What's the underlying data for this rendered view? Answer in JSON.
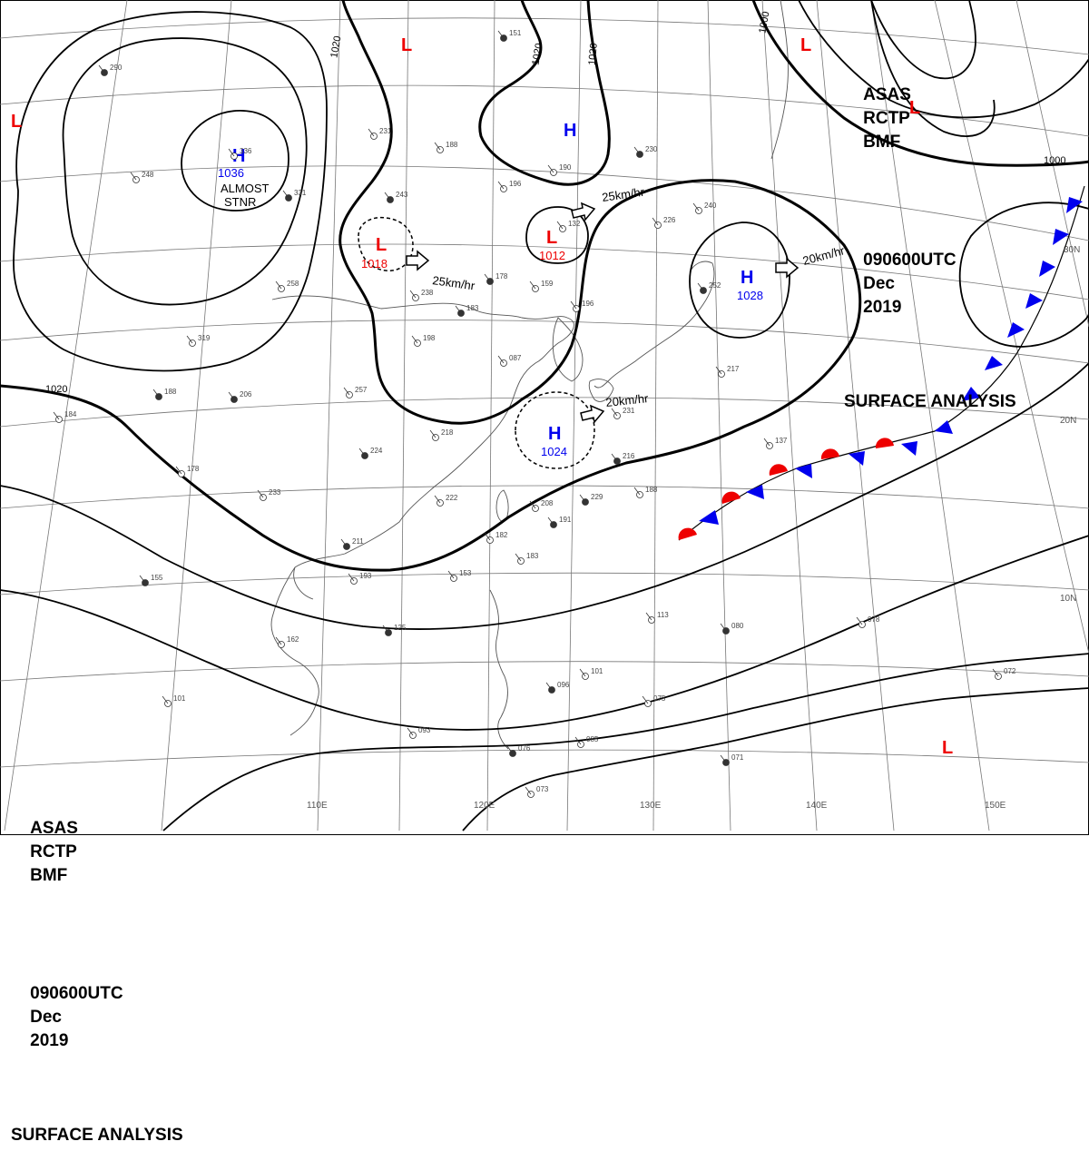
{
  "header": {
    "agency": "ASAS",
    "station": "RCTP",
    "office": "BMF",
    "datetime": "090600UTC",
    "month": "Dec",
    "year": "2019",
    "product": "SURFACE ANALYSIS"
  },
  "colors": {
    "high": "#0000ee",
    "low": "#ee0000",
    "isobar": "#000000",
    "grid": "#777777",
    "warm_front": "#ee0000",
    "cold_front": "#0000ee"
  },
  "pressure_centers": [
    {
      "type": "H",
      "value": "1036",
      "note": "ALMOST\nSTNR"
    },
    {
      "type": "H",
      "value": "1028",
      "motion": "20km/hr"
    },
    {
      "type": "H",
      "value": "1024",
      "motion": "20km/hr"
    },
    {
      "type": "H",
      "value": ""
    },
    {
      "type": "L",
      "value": "1018",
      "motion": "25km/hr"
    },
    {
      "type": "L",
      "value": "1012",
      "motion": "25km/hr"
    },
    {
      "type": "L",
      "value": ""
    },
    {
      "type": "L",
      "value": ""
    },
    {
      "type": "L",
      "value": ""
    },
    {
      "type": "L",
      "value": ""
    },
    {
      "type": "L",
      "value": ""
    }
  ],
  "isobar_labels": [
    "1020",
    "1020",
    "1020",
    "1020",
    "1000",
    "1000"
  ],
  "grid_labels": {
    "longitude": [
      "110E",
      "120E",
      "130E",
      "140E",
      "150E"
    ],
    "latitude": [
      "30N",
      "20N",
      "10N"
    ]
  },
  "station_samples": [
    "290",
    "248",
    "336",
    "331",
    "258",
    "319",
    "188",
    "184",
    "178",
    "206",
    "257",
    "238",
    "183",
    "198",
    "218",
    "224",
    "233",
    "222",
    "211",
    "193",
    "183",
    "155",
    "153",
    "162",
    "125",
    "101",
    "093",
    "076",
    "073",
    "085",
    "096",
    "101",
    "113",
    "080",
    "078",
    "072",
    "071",
    "075",
    "226",
    "230",
    "190",
    "196",
    "243",
    "188",
    "231",
    "151",
    "132",
    "159",
    "178",
    "196",
    "240",
    "252",
    "217",
    "137",
    "216",
    "188",
    "208",
    "191",
    "182",
    "231",
    "229",
    "087"
  ]
}
